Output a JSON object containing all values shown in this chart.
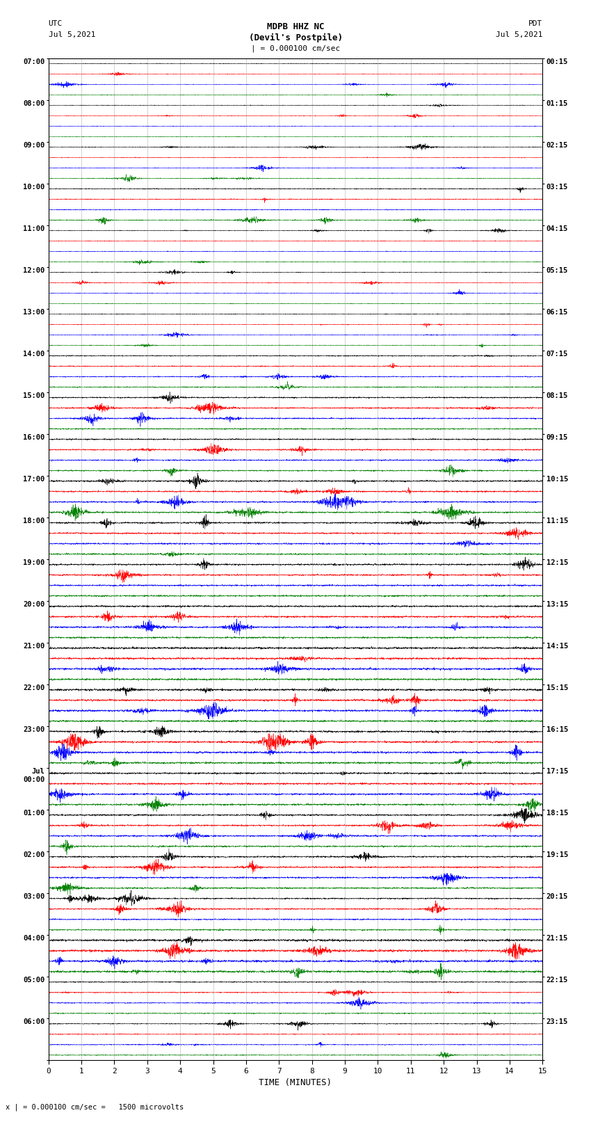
{
  "title_line1": "MDPB HHZ NC",
  "title_line2": "(Devil's Postpile)",
  "title_scale": "| = 0.000100 cm/sec",
  "left_label_top": "UTC",
  "left_label_date": "Jul 5,2021",
  "right_label_top": "PDT",
  "right_label_date": "Jul 5,2021",
  "xlabel": "TIME (MINUTES)",
  "bottom_note": "x | = 0.000100 cm/sec =   1500 microvolts",
  "background_color": "#ffffff",
  "trace_colors": [
    "black",
    "red",
    "blue",
    "green"
  ],
  "left_times_major": [
    "07:00",
    "08:00",
    "09:00",
    "10:00",
    "11:00",
    "12:00",
    "13:00",
    "14:00",
    "15:00",
    "16:00",
    "17:00",
    "18:00",
    "19:00",
    "20:00",
    "21:00",
    "22:00",
    "23:00",
    "Jul\n00:00",
    "01:00",
    "02:00",
    "03:00",
    "04:00",
    "05:00",
    "06:00"
  ],
  "right_times_major": [
    "00:15",
    "01:15",
    "02:15",
    "03:15",
    "04:15",
    "05:15",
    "06:15",
    "07:15",
    "08:15",
    "09:15",
    "10:15",
    "11:15",
    "12:15",
    "13:15",
    "14:15",
    "15:15",
    "16:15",
    "17:15",
    "18:15",
    "19:15",
    "20:15",
    "21:15",
    "22:15",
    "23:15"
  ],
  "n_groups": 24,
  "traces_per_group": 4,
  "x_min": 0,
  "x_max": 15,
  "x_ticks": [
    0,
    1,
    2,
    3,
    4,
    5,
    6,
    7,
    8,
    9,
    10,
    11,
    12,
    13,
    14,
    15
  ],
  "n_points": 3000,
  "base_noise": 0.06,
  "amplitude_scale": 0.32
}
